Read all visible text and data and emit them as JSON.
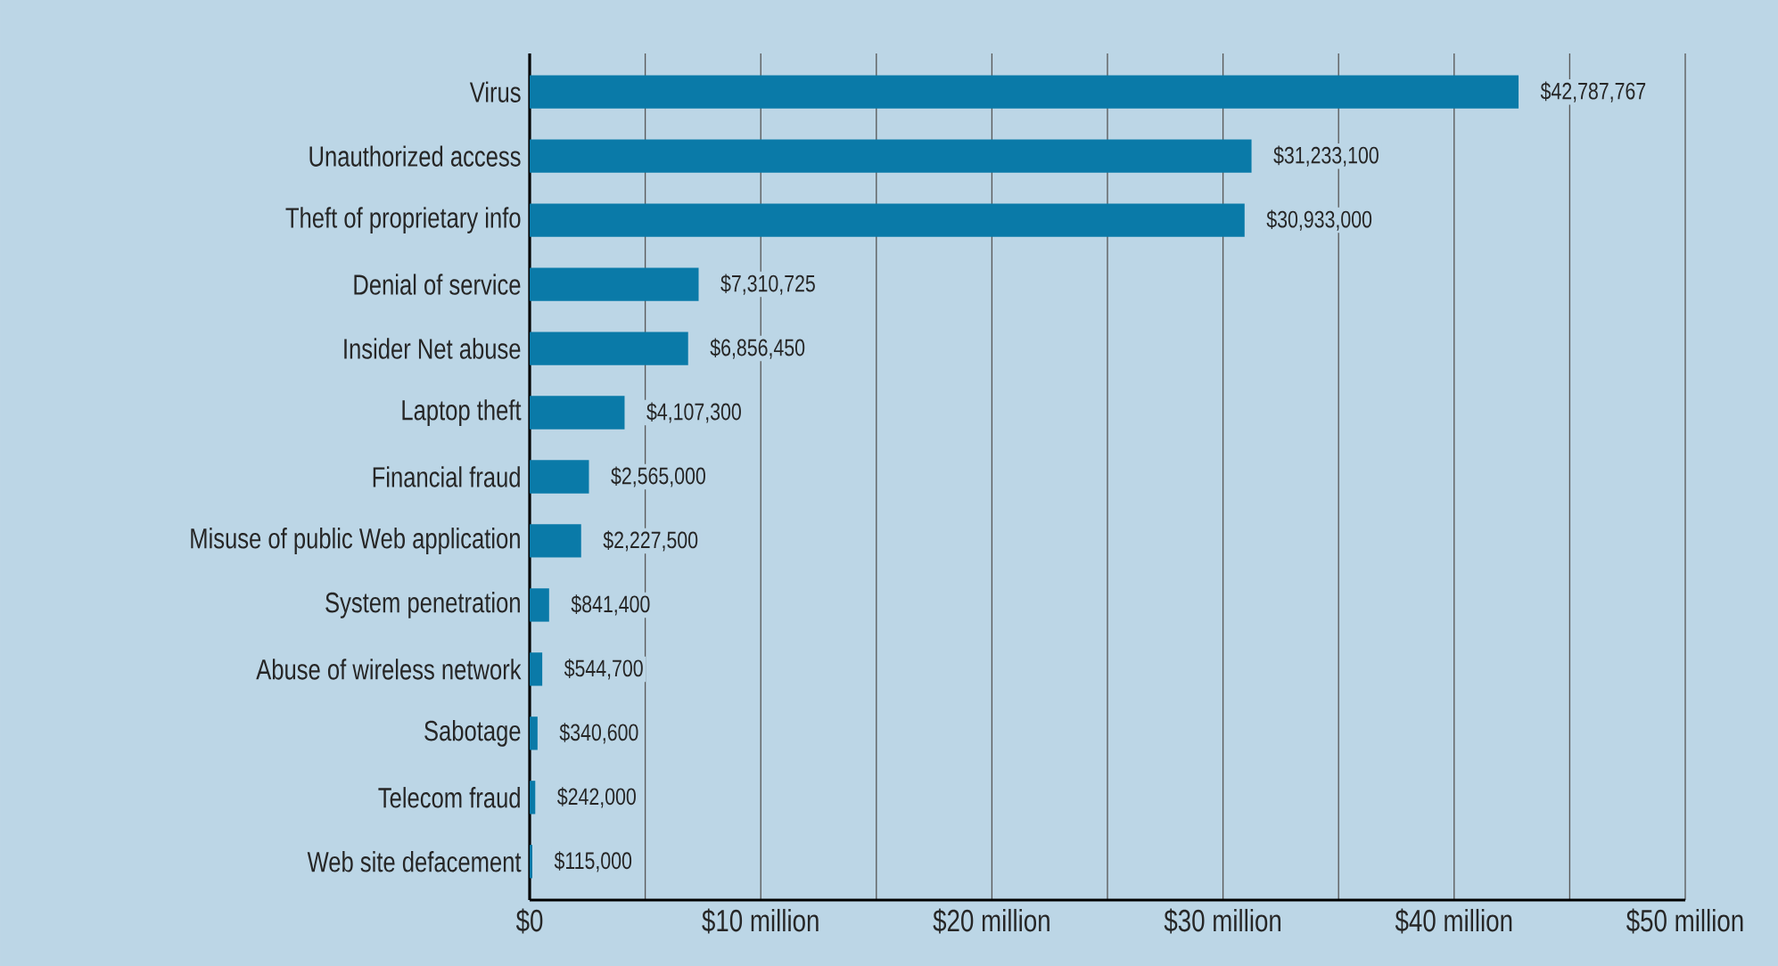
{
  "chart_data": {
    "type": "bar",
    "orientation": "horizontal",
    "categories": [
      "Virus",
      "Unauthorized access",
      "Theft of proprietary info",
      "Denial of service",
      "Insider Net abuse",
      "Laptop theft",
      "Financial fraud",
      "Misuse of public Web application",
      "System penetration",
      "Abuse of wireless network",
      "Sabotage",
      "Telecom fraud",
      "Web site defacement"
    ],
    "values": [
      42787767,
      31233100,
      30933000,
      7310725,
      6856450,
      4107300,
      2565000,
      2227500,
      841400,
      544700,
      340600,
      242000,
      115000
    ],
    "value_labels": [
      "$42,787,767",
      "$31,233,100",
      "$30,933,000",
      "$7,310,725",
      "$6,856,450",
      "$4,107,300",
      "$2,565,000",
      "$2,227,500",
      "$841,400",
      "$544,700",
      "$340,600",
      "$242,000",
      "$115,000"
    ],
    "color": "#0a7aa8",
    "xlim": [
      0,
      50000000
    ],
    "xticks": [
      {
        "value": 0,
        "label": "$0"
      },
      {
        "value": 5000000,
        "label": null
      },
      {
        "value": 10000000,
        "label": "$10 million"
      },
      {
        "value": 15000000,
        "label": null
      },
      {
        "value": 20000000,
        "label": "$20 million"
      },
      {
        "value": 25000000,
        "label": null
      },
      {
        "value": 30000000,
        "label": "$30 million"
      },
      {
        "value": 35000000,
        "label": null
      },
      {
        "value": 40000000,
        "label": "$40 million"
      },
      {
        "value": 45000000,
        "label": null
      },
      {
        "value": 50000000,
        "label": "$50 million"
      }
    ],
    "grid": "x"
  }
}
